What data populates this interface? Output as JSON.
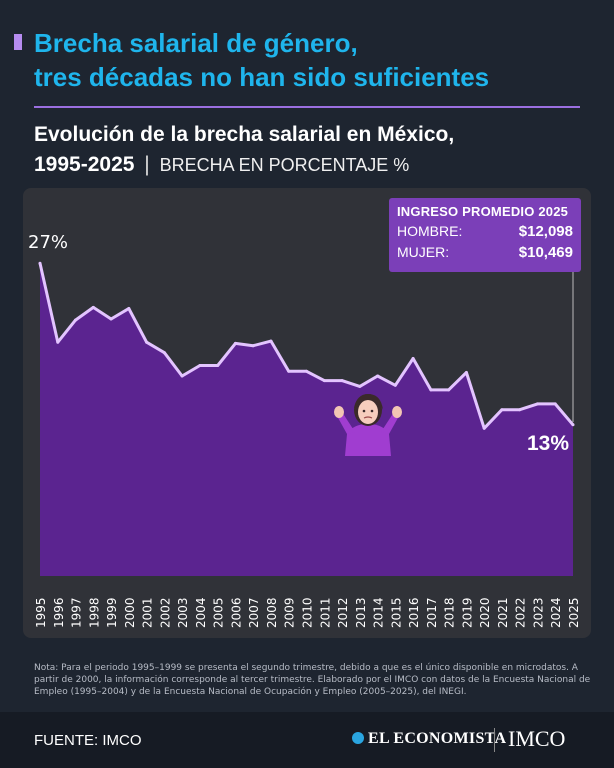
{
  "headline": {
    "line1": "Brecha salarial de género,",
    "line2": "tres décadas no han sido suficientes"
  },
  "subtitle": {
    "title_part1": "Evolución de la brecha salarial en México,",
    "title_part2": "1995-2025",
    "separator": "|",
    "unit": "BRECHA EN PORCENTAJE %"
  },
  "info_box": {
    "title": "INGRESO PROMEDIO 2025",
    "rows": [
      {
        "label": "HOMBRE:",
        "value": "$12,098"
      },
      {
        "label": "MUJER:",
        "value": "$10,469"
      }
    ]
  },
  "chart_data": {
    "type": "area",
    "x": [
      "1995",
      "1996",
      "1997",
      "1998",
      "1999",
      "2000",
      "2001",
      "2002",
      "2003",
      "2004",
      "2005",
      "2006",
      "2007",
      "2008",
      "2009",
      "2010",
      "2011",
      "2012",
      "2013",
      "2014",
      "2015",
      "2016",
      "2017",
      "2018",
      "2019",
      "2020",
      "2021",
      "2022",
      "2023",
      "2024",
      "2025"
    ],
    "series": [
      {
        "values": [
          26.9,
          20.1,
          22.0,
          23.1,
          22.1,
          23.0,
          20.1,
          19.2,
          17.2,
          18.1,
          18.1,
          20.0,
          19.8,
          20.2,
          17.6,
          17.6,
          16.8,
          16.8,
          16.3,
          17.2,
          16.4,
          18.7,
          16.0,
          16.0,
          17.5,
          12.7,
          14.3,
          14.3,
          14.8,
          14.8,
          13.0
        ]
      }
    ],
    "annotations": [
      {
        "label": "27%",
        "x": "1995"
      },
      {
        "label": "13%",
        "x": "2025"
      }
    ],
    "colors": {
      "fill": "#5b2490",
      "line": "#e3c4ff"
    }
  },
  "note": "Nota: Para el periodo 1995–1999 se presenta el segundo trimestre, debido a que es el único disponible en microdatos. A partir de 2000, la información corresponde al tercer trimestre. Elaborado por el IMCO con datos de la Encuesta Nacional de Empleo (1995–2004) y de la Encuesta Nacional de Ocupación y Empleo (2005–2025), del INEGI.",
  "footer": {
    "source": "FUENTE: IMCO",
    "brand1": "EL ECONOMISTA",
    "brand2": "IMCO"
  }
}
